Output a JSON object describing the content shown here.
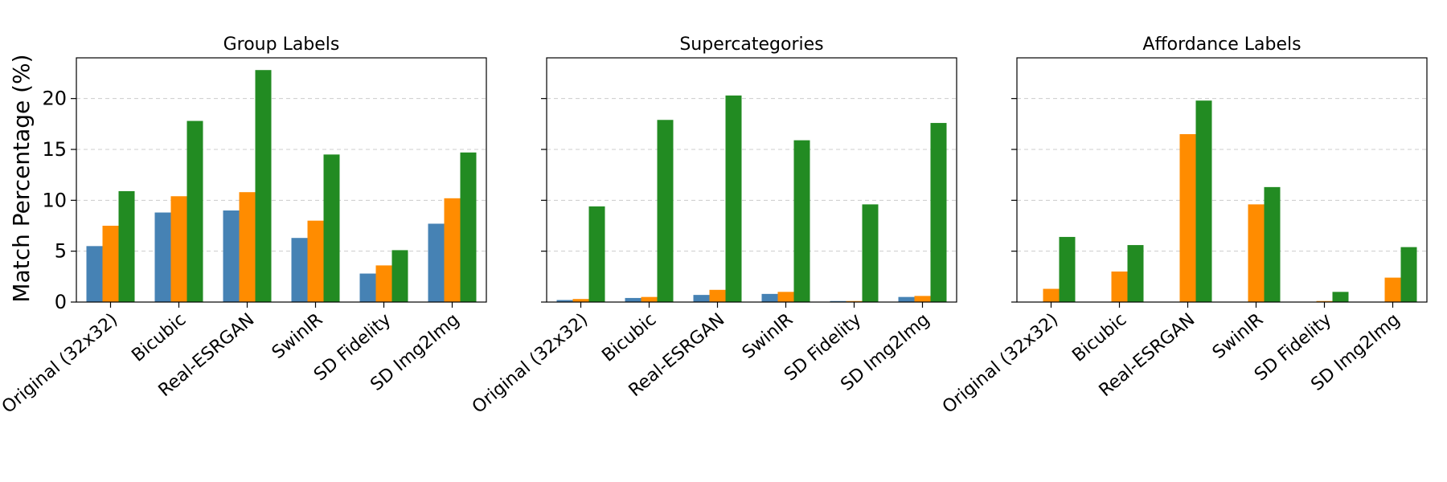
{
  "figure": {
    "ylabel": "Match Percentage (%)"
  },
  "colors": {
    "series": [
      "#4682b4",
      "#ff8c00",
      "#228b22"
    ],
    "grid": "#cccccc"
  },
  "chart_data": [
    {
      "type": "bar",
      "title": "Group Labels",
      "categories": [
        "Original (32x32)",
        "Bicubic",
        "Real-ESRGAN",
        "SwinIR",
        "SD Fidelity",
        "SD Img2Img"
      ],
      "ylim": [
        0,
        24
      ],
      "yticks": [
        0,
        5,
        10,
        15,
        20
      ],
      "grid": "y-dashed",
      "series": [
        {
          "values": [
            5.5,
            8.8,
            9.0,
            6.3,
            2.8,
            7.7
          ]
        },
        {
          "values": [
            7.5,
            10.4,
            10.8,
            8.0,
            3.6,
            10.2
          ]
        },
        {
          "values": [
            10.9,
            17.8,
            22.8,
            14.5,
            5.1,
            14.7
          ]
        }
      ]
    },
    {
      "type": "bar",
      "title": "Supercategories",
      "categories": [
        "Original (32x32)",
        "Bicubic",
        "Real-ESRGAN",
        "SwinIR",
        "SD Fidelity",
        "SD Img2Img"
      ],
      "ylim": [
        0,
        24
      ],
      "yticks": [
        0,
        5,
        10,
        15,
        20
      ],
      "grid": "y-dashed",
      "series": [
        {
          "values": [
            0.2,
            0.4,
            0.7,
            0.8,
            0.1,
            0.5
          ]
        },
        {
          "values": [
            0.3,
            0.5,
            1.2,
            1.0,
            0.1,
            0.6
          ]
        },
        {
          "values": [
            9.4,
            17.9,
            20.3,
            15.9,
            9.6,
            17.6
          ]
        }
      ]
    },
    {
      "type": "bar",
      "title": "Affordance Labels",
      "categories": [
        "Original (32x32)",
        "Bicubic",
        "Real-ESRGAN",
        "SwinIR",
        "SD Fidelity",
        "SD Img2Img"
      ],
      "ylim": [
        0,
        24
      ],
      "yticks": [
        0,
        5,
        10,
        15,
        20
      ],
      "grid": "y-dashed",
      "series": [
        {
          "values": [
            0,
            0,
            0,
            0,
            0,
            0
          ]
        },
        {
          "values": [
            1.3,
            3.0,
            16.5,
            9.6,
            0.1,
            2.4
          ]
        },
        {
          "values": [
            6.4,
            5.6,
            19.8,
            11.3,
            1.0,
            5.4
          ]
        }
      ]
    }
  ]
}
